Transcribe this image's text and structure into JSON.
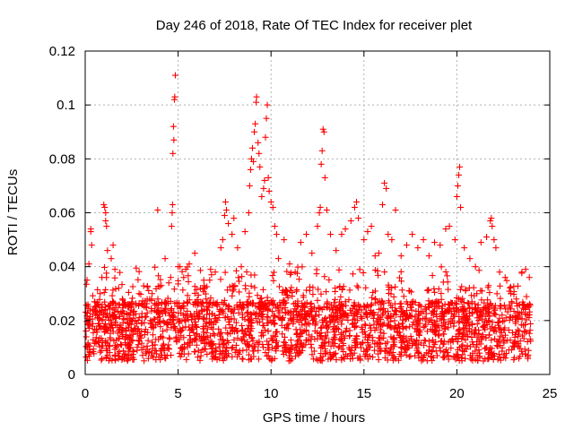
{
  "chart_data": {
    "type": "scatter",
    "title": "Day 246 of 2018, Rate Of TEC Index for receiver plet",
    "xlabel": "GPS time / hours",
    "ylabel": "ROTI / TECUs",
    "xlim": [
      0,
      25
    ],
    "ylim": [
      0,
      0.12
    ],
    "xticks": [
      0,
      5,
      10,
      15,
      20,
      25
    ],
    "xtick_labels": [
      "0",
      "5",
      "10",
      "15",
      "20",
      "25"
    ],
    "yticks": [
      0,
      0.02,
      0.04,
      0.06,
      0.08,
      0.1,
      0.12
    ],
    "ytick_labels": [
      "0",
      "0.02",
      "0.04",
      "0.06",
      "0.08",
      "0.1",
      "0.12"
    ],
    "grid": true,
    "marker": "plus",
    "series_color": "#ff0000",
    "series": [
      {
        "name": "ROTI",
        "points": [
          [
            0.1,
            0.035
          ],
          [
            0.2,
            0.041
          ],
          [
            0.3,
            0.054
          ],
          [
            0.3,
            0.053
          ],
          [
            0.35,
            0.048
          ],
          [
            0.5,
            0.027
          ],
          [
            0.8,
            0.03
          ],
          [
            0.9,
            0.036
          ],
          [
            1.0,
            0.063
          ],
          [
            1.05,
            0.062
          ],
          [
            1.1,
            0.06
          ],
          [
            1.1,
            0.057
          ],
          [
            1.15,
            0.055
          ],
          [
            1.2,
            0.046
          ],
          [
            1.4,
            0.043
          ],
          [
            1.5,
            0.048
          ],
          [
            1.6,
            0.039
          ],
          [
            1.8,
            0.032
          ],
          [
            2.0,
            0.028
          ],
          [
            2.3,
            0.026
          ],
          [
            2.6,
            0.022
          ],
          [
            2.9,
            0.03
          ],
          [
            3.3,
            0.025
          ],
          [
            3.6,
            0.03
          ],
          [
            3.9,
            0.061
          ],
          [
            4.1,
            0.033
          ],
          [
            4.3,
            0.043
          ],
          [
            4.5,
            0.034
          ],
          [
            4.6,
            0.036
          ],
          [
            4.65,
            0.055
          ],
          [
            4.68,
            0.06
          ],
          [
            4.7,
            0.063
          ],
          [
            4.72,
            0.082
          ],
          [
            4.75,
            0.092
          ],
          [
            4.77,
            0.087
          ],
          [
            4.8,
            0.102
          ],
          [
            4.82,
            0.103
          ],
          [
            4.85,
            0.111
          ],
          [
            5.0,
            0.04
          ],
          [
            5.1,
            0.04
          ],
          [
            5.3,
            0.036
          ],
          [
            5.6,
            0.041
          ],
          [
            5.9,
            0.045
          ],
          [
            6.2,
            0.032
          ],
          [
            6.5,
            0.028
          ],
          [
            6.8,
            0.037
          ],
          [
            7.0,
            0.038
          ],
          [
            7.3,
            0.047
          ],
          [
            7.4,
            0.05
          ],
          [
            7.5,
            0.059
          ],
          [
            7.55,
            0.064
          ],
          [
            7.6,
            0.061
          ],
          [
            7.7,
            0.056
          ],
          [
            7.9,
            0.052
          ],
          [
            8.0,
            0.058
          ],
          [
            8.2,
            0.047
          ],
          [
            8.4,
            0.04
          ],
          [
            8.6,
            0.053
          ],
          [
            8.8,
            0.06
          ],
          [
            8.85,
            0.07
          ],
          [
            8.9,
            0.076
          ],
          [
            8.95,
            0.08
          ],
          [
            9.0,
            0.084
          ],
          [
            9.05,
            0.079
          ],
          [
            9.1,
            0.09
          ],
          [
            9.15,
            0.093
          ],
          [
            9.2,
            0.101
          ],
          [
            9.22,
            0.103
          ],
          [
            9.3,
            0.086
          ],
          [
            9.35,
            0.082
          ],
          [
            9.4,
            0.077
          ],
          [
            9.5,
            0.066
          ],
          [
            9.6,
            0.069
          ],
          [
            9.65,
            0.072
          ],
          [
            9.7,
            0.088
          ],
          [
            9.75,
            0.095
          ],
          [
            9.8,
            0.1
          ],
          [
            9.85,
            0.073
          ],
          [
            9.9,
            0.068
          ],
          [
            10.0,
            0.064
          ],
          [
            10.1,
            0.062
          ],
          [
            10.2,
            0.055
          ],
          [
            10.3,
            0.052
          ],
          [
            10.4,
            0.043
          ],
          [
            10.7,
            0.05
          ],
          [
            11.0,
            0.041
          ],
          [
            11.3,
            0.038
          ],
          [
            11.6,
            0.049
          ],
          [
            11.9,
            0.052
          ],
          [
            12.2,
            0.045
          ],
          [
            12.5,
            0.055
          ],
          [
            12.6,
            0.06
          ],
          [
            12.65,
            0.062
          ],
          [
            12.7,
            0.078
          ],
          [
            12.75,
            0.083
          ],
          [
            12.8,
            0.091
          ],
          [
            12.85,
            0.09
          ],
          [
            12.9,
            0.073
          ],
          [
            13.0,
            0.061
          ],
          [
            13.2,
            0.052
          ],
          [
            13.5,
            0.046
          ],
          [
            13.8,
            0.052
          ],
          [
            14.0,
            0.054
          ],
          [
            14.3,
            0.057
          ],
          [
            14.5,
            0.062
          ],
          [
            14.6,
            0.064
          ],
          [
            14.7,
            0.058
          ],
          [
            15.0,
            0.05
          ],
          [
            15.2,
            0.053
          ],
          [
            15.4,
            0.055
          ],
          [
            15.6,
            0.044
          ],
          [
            15.8,
            0.045
          ],
          [
            16.0,
            0.063
          ],
          [
            16.1,
            0.071
          ],
          [
            16.2,
            0.069
          ],
          [
            16.3,
            0.052
          ],
          [
            16.5,
            0.05
          ],
          [
            16.7,
            0.061
          ],
          [
            17.0,
            0.044
          ],
          [
            17.3,
            0.048
          ],
          [
            17.6,
            0.052
          ],
          [
            17.9,
            0.047
          ],
          [
            18.2,
            0.05
          ],
          [
            18.5,
            0.044
          ],
          [
            18.8,
            0.049
          ],
          [
            19.1,
            0.048
          ],
          [
            19.4,
            0.054
          ],
          [
            19.6,
            0.055
          ],
          [
            19.9,
            0.05
          ],
          [
            20.0,
            0.066
          ],
          [
            20.05,
            0.07
          ],
          [
            20.1,
            0.074
          ],
          [
            20.15,
            0.077
          ],
          [
            20.2,
            0.062
          ],
          [
            20.4,
            0.047
          ],
          [
            20.7,
            0.043
          ],
          [
            21.0,
            0.04
          ],
          [
            21.3,
            0.049
          ],
          [
            21.6,
            0.051
          ],
          [
            21.8,
            0.057
          ],
          [
            21.85,
            0.058
          ],
          [
            21.9,
            0.055
          ],
          [
            22.0,
            0.05
          ],
          [
            22.1,
            0.047
          ],
          [
            22.3,
            0.038
          ],
          [
            22.6,
            0.036
          ],
          [
            22.9,
            0.03
          ],
          [
            23.2,
            0.028
          ],
          [
            23.5,
            0.038
          ],
          [
            23.7,
            0.039
          ],
          [
            23.9,
            0.036
          ]
        ]
      }
    ]
  }
}
